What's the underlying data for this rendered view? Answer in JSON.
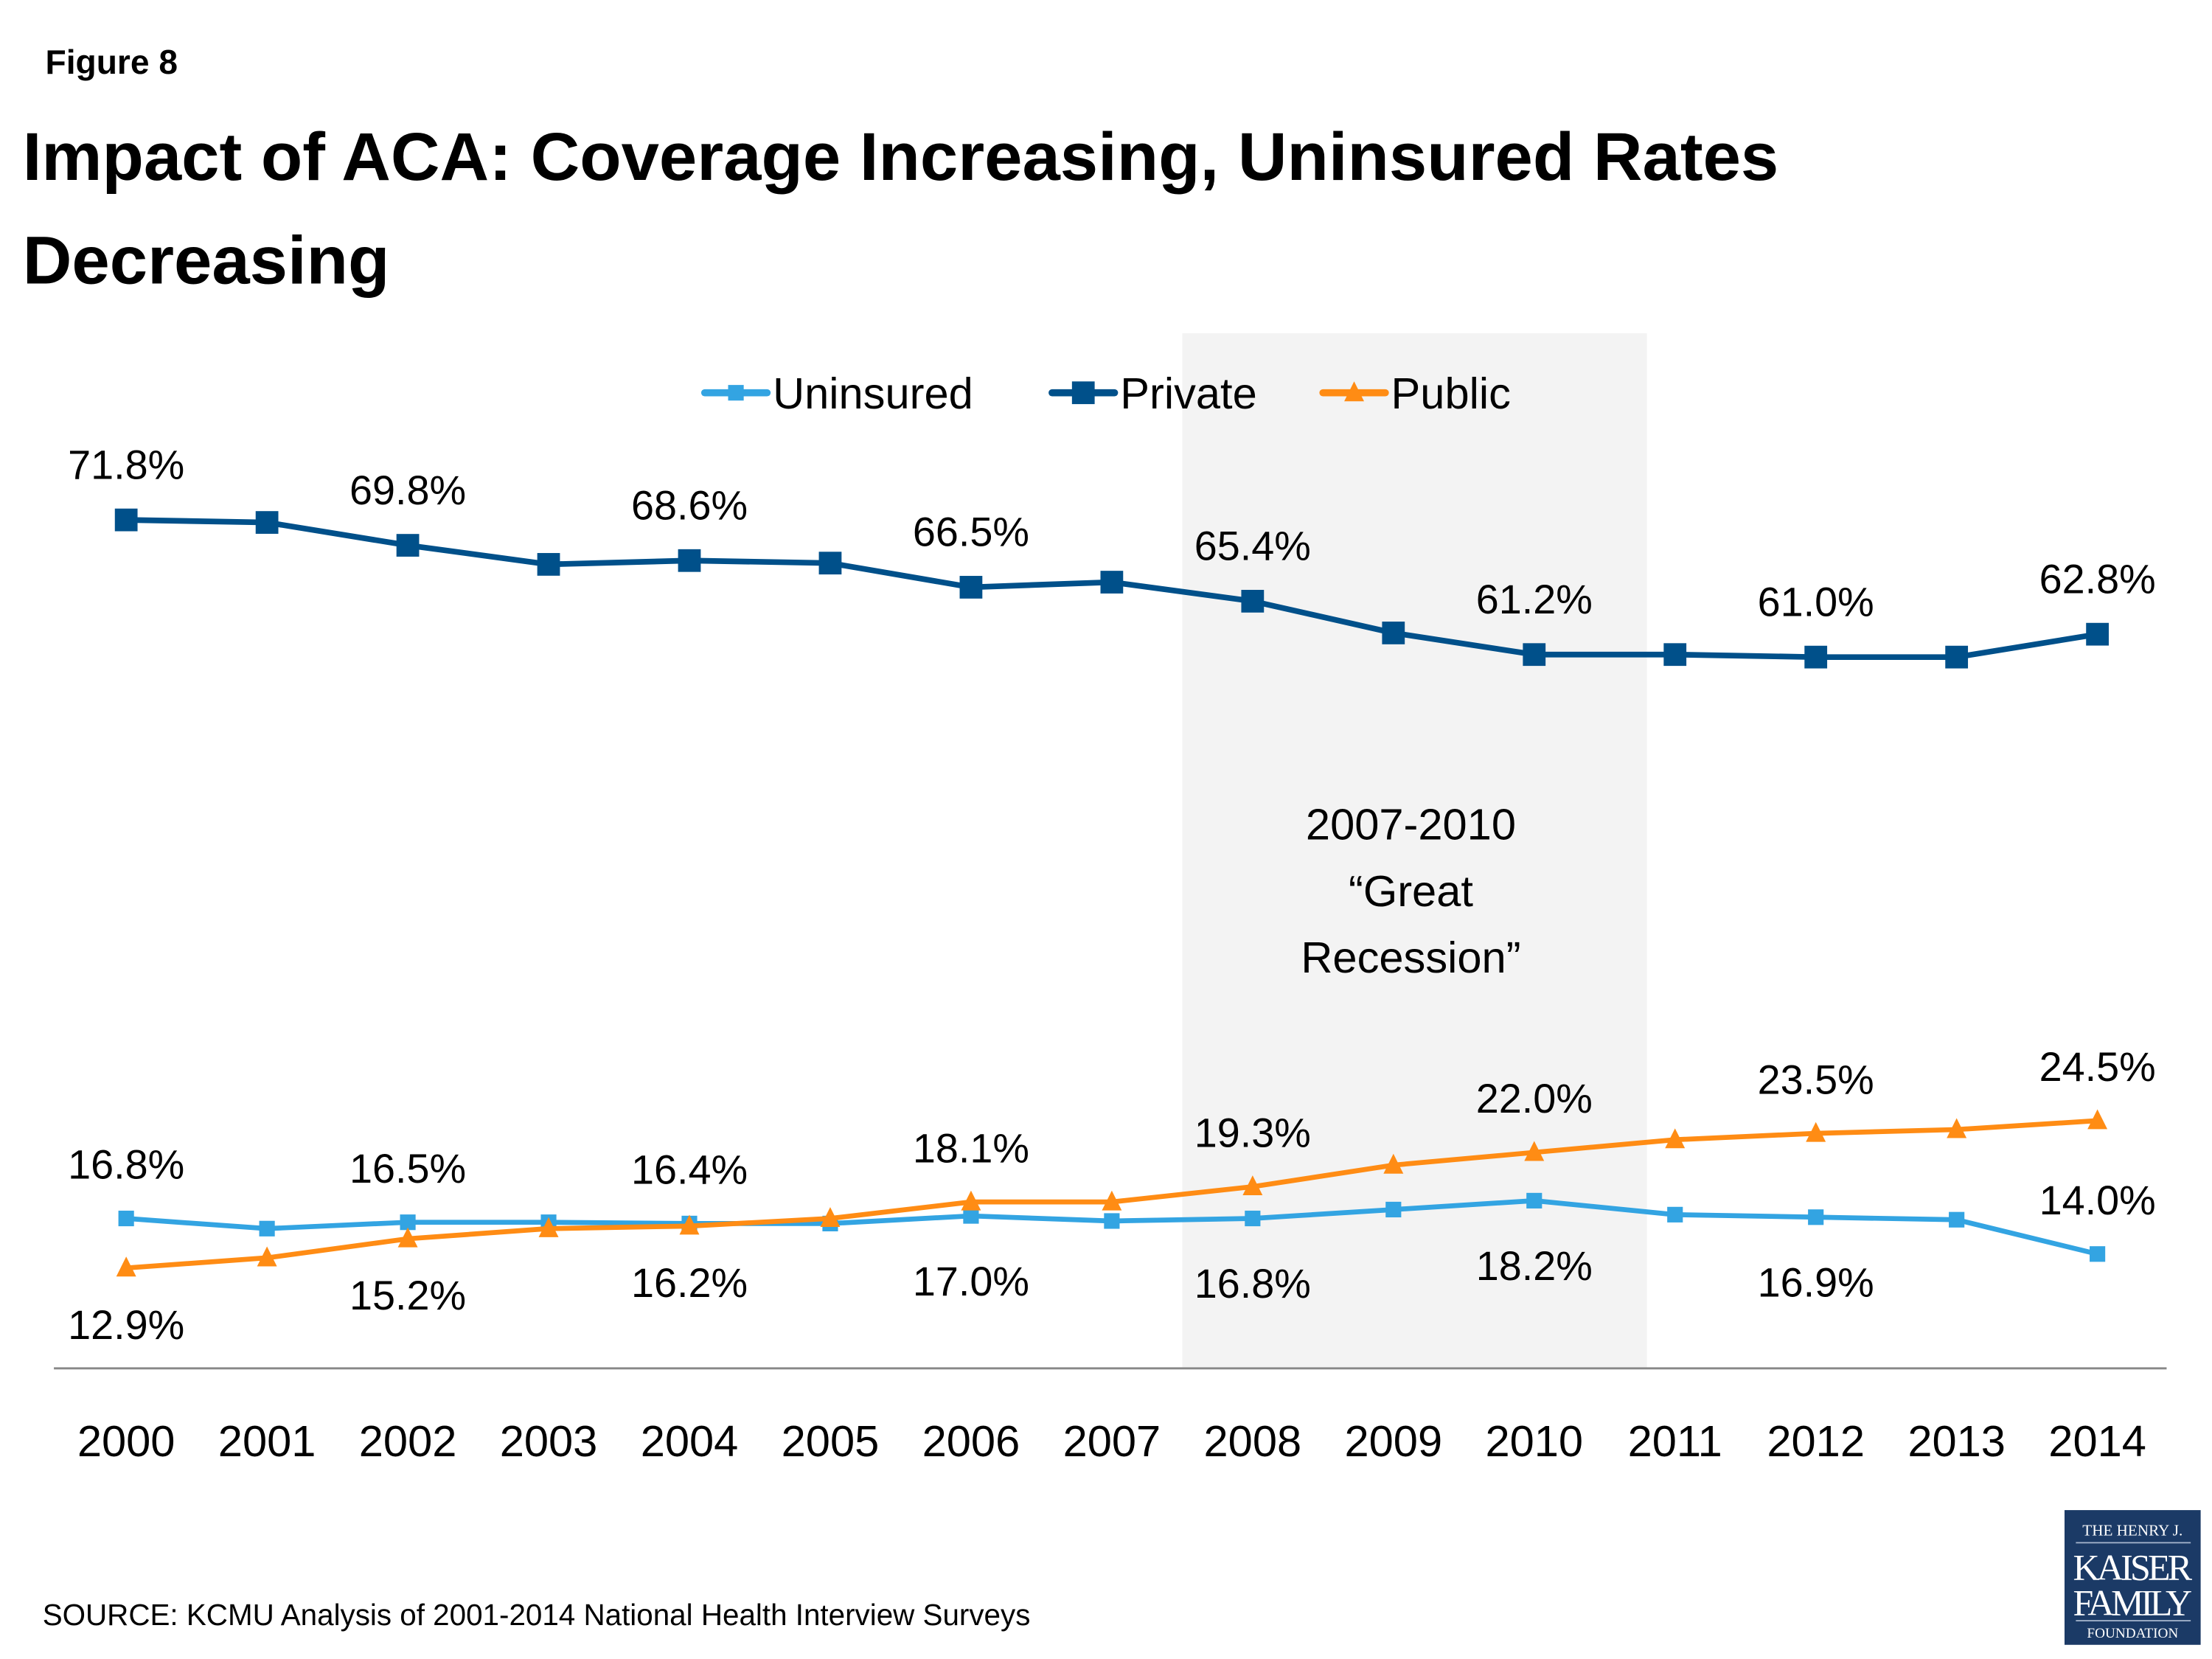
{
  "figure_label": "Figure 8",
  "title_lines": [
    "Impact of ACA: Coverage Increasing, Uninsured Rates",
    "Decreasing"
  ],
  "source": "SOURCE: KCMU Analysis of 2001-2014 National Health Interview Surveys",
  "logo": {
    "lines": [
      "THE HENRY J.",
      "KAISER",
      "FAMILY",
      "FOUNDATION"
    ],
    "color": "#1B3A66"
  },
  "chart_data": {
    "type": "line",
    "title": "Impact of ACA: Coverage Increasing, Uninsured Rates Decreasing",
    "xlabel": "",
    "ylabel": "",
    "x": [
      "2000",
      "2001",
      "2002",
      "2003",
      "2004",
      "2005",
      "2006",
      "2007",
      "2008",
      "2009",
      "2010",
      "2011",
      "2012",
      "2013",
      "2014"
    ],
    "ylim": [
      5,
      86.5
    ],
    "grid": false,
    "legend_placement": "top",
    "shaded_region": {
      "from": "2007.5",
      "to": "2010.8",
      "color": "#F3F3F3",
      "annotation": [
        "2007-2010",
        "“Great",
        "Recession”"
      ]
    },
    "series": [
      {
        "name": "Uninsured",
        "color": "#33A4E2",
        "marker": "square-small",
        "values": [
          16.8,
          16.0,
          16.5,
          16.5,
          16.4,
          16.4,
          17.0,
          16.6,
          16.8,
          17.5,
          18.2,
          17.1,
          16.9,
          16.7,
          14.0
        ],
        "data_labels": [
          "16.8%",
          null,
          "16.5%",
          null,
          "16.4%",
          null,
          "17.0%",
          null,
          "16.8%",
          null,
          "18.2%",
          null,
          "16.9%",
          null,
          "14.0%"
        ],
        "label_side": [
          "above",
          null,
          "above",
          null,
          "above",
          null,
          "below",
          null,
          "below",
          null,
          "below",
          null,
          "below",
          null,
          "above"
        ]
      },
      {
        "name": "Private",
        "color": "#00508A",
        "marker": "square",
        "values": [
          71.8,
          71.6,
          69.8,
          68.3,
          68.6,
          68.4,
          66.5,
          66.9,
          65.4,
          62.9,
          61.2,
          61.2,
          61.0,
          61.0,
          62.8
        ],
        "data_labels": [
          "71.8%",
          null,
          "69.8%",
          null,
          "68.6%",
          null,
          "66.5%",
          null,
          "65.4%",
          null,
          "61.2%",
          null,
          "61.0%",
          null,
          "62.8%"
        ],
        "label_side": [
          "above",
          null,
          "above",
          null,
          "above",
          null,
          "above",
          null,
          "above",
          null,
          "above",
          null,
          "above",
          null,
          "above"
        ]
      },
      {
        "name": "Public",
        "color": "#FF8C14",
        "marker": "triangle",
        "values": [
          12.9,
          13.7,
          15.2,
          16.0,
          16.2,
          16.8,
          18.1,
          18.1,
          19.3,
          21.0,
          22.0,
          23.0,
          23.5,
          23.8,
          24.5
        ],
        "data_labels": [
          "12.9%",
          null,
          "15.2%",
          null,
          "16.2%",
          null,
          "18.1%",
          null,
          "19.3%",
          null,
          "22.0%",
          null,
          "23.5%",
          null,
          "24.5%"
        ],
        "label_side": [
          "below",
          null,
          "below",
          null,
          "below",
          null,
          "above",
          null,
          "above",
          null,
          "above",
          null,
          "above",
          null,
          "above"
        ]
      }
    ]
  }
}
